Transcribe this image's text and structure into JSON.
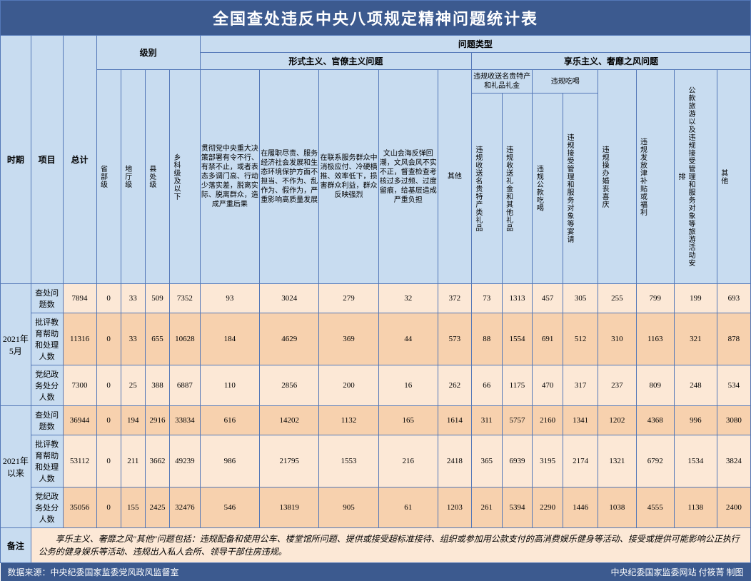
{
  "title": "全国查处违反中央八项规定精神问题统计表",
  "headers": {
    "period": "时期",
    "item": "项目",
    "total": "总计",
    "level": "级别",
    "problem_type": "问题类型",
    "level_cols": [
      "省部级",
      "地厅级",
      "县处级",
      "乡科级及以下"
    ],
    "type_group1": "形式主义、官僚主义问题",
    "type_group2": "享乐主义、奢靡之风问题",
    "type1_cols": [
      "贯彻党中央重大决策部署有令不行、有禁不止，或者表态多调门高、行动少落实差，脱离实际、脱离群众，造成严重后果",
      "在履职尽责、服务经济社会发展和生态环境保护方面不担当、不作为、乱作为、假作为，严重影响高质量发展",
      "在联系服务群众中消极应付、冷硬横推、效率低下，损害群众利益，群众反映强烈",
      "文山会海反弹回潮，文风会风不实不正，督查检查考核过多过频、过度留痕，给基层造成严重负担",
      "其他"
    ],
    "type2_group_a": "违规收送名贵特产和礼品礼金",
    "type2_group_b": "违规吃喝",
    "type2_sub_a": [
      "违规收送名贵特产类礼品",
      "违规收送礼金和其他礼品"
    ],
    "type2_sub_b": [
      "违规公款吃喝",
      "违规接受管理和服务对象等宴请"
    ],
    "type2_cols_rest": [
      "违规操办婚丧喜庆",
      "违规发放津补贴或福利",
      "公款旅游以及违规接受管理和服务对象等旅游活动安排",
      "其他"
    ]
  },
  "periods": [
    {
      "label": "2021年5月",
      "rows": [
        {
          "item": "查处问题数",
          "cls": "data-light",
          "vals": [
            "7894",
            "0",
            "33",
            "509",
            "7352",
            "93",
            "3024",
            "279",
            "32",
            "372",
            "73",
            "1313",
            "457",
            "305",
            "255",
            "799",
            "199",
            "693"
          ]
        },
        {
          "item": "批评教育帮助和处理人数",
          "cls": "data-dark",
          "vals": [
            "11316",
            "0",
            "33",
            "655",
            "10628",
            "184",
            "4629",
            "369",
            "44",
            "573",
            "88",
            "1554",
            "691",
            "512",
            "310",
            "1163",
            "321",
            "878"
          ]
        },
        {
          "item": "党纪政务处分人数",
          "cls": "data-light",
          "vals": [
            "7300",
            "0",
            "25",
            "388",
            "6887",
            "110",
            "2856",
            "200",
            "16",
            "262",
            "66",
            "1175",
            "470",
            "317",
            "237",
            "809",
            "248",
            "534"
          ]
        }
      ]
    },
    {
      "label": "2021年以来",
      "rows": [
        {
          "item": "查处问题数",
          "cls": "data-dark",
          "vals": [
            "36944",
            "0",
            "194",
            "2916",
            "33834",
            "616",
            "14202",
            "1132",
            "165",
            "1614",
            "311",
            "5757",
            "2160",
            "1341",
            "1202",
            "4368",
            "996",
            "3080"
          ]
        },
        {
          "item": "批评教育帮助和处理人数",
          "cls": "data-light",
          "vals": [
            "53112",
            "0",
            "211",
            "3662",
            "49239",
            "986",
            "21795",
            "1553",
            "216",
            "2418",
            "365",
            "6939",
            "3195",
            "2174",
            "1321",
            "6792",
            "1534",
            "3824"
          ]
        },
        {
          "item": "党纪政务处分人数",
          "cls": "data-dark",
          "vals": [
            "35056",
            "0",
            "155",
            "2425",
            "32476",
            "546",
            "13819",
            "905",
            "61",
            "1203",
            "261",
            "5394",
            "2290",
            "1446",
            "1038",
            "4555",
            "1138",
            "2400"
          ]
        }
      ]
    }
  ],
  "note_label": "备注",
  "note_text": "　　享乐主义、奢靡之风\"其他\"问题包括：违规配备和使用公车、楼堂馆所问题、提供或接受超标准接待、组织或参加用公款支付的高消费娱乐健身等活动、接受或提供可能影响公正执行公务的健身娱乐等活动、违规出入私人会所、领导干部住房违规。",
  "footer_left": "数据来源：中央纪委国家监委党风政风监督室",
  "footer_right": "中央纪委国家监委网站 付筱菁 制图",
  "colors": {
    "header_bg": "#3c5a8f",
    "sub_header_bg": "#c8dcf0",
    "data_light": "#fce8d6",
    "data_dark": "#f7d1ae",
    "border": "#5478b8"
  }
}
